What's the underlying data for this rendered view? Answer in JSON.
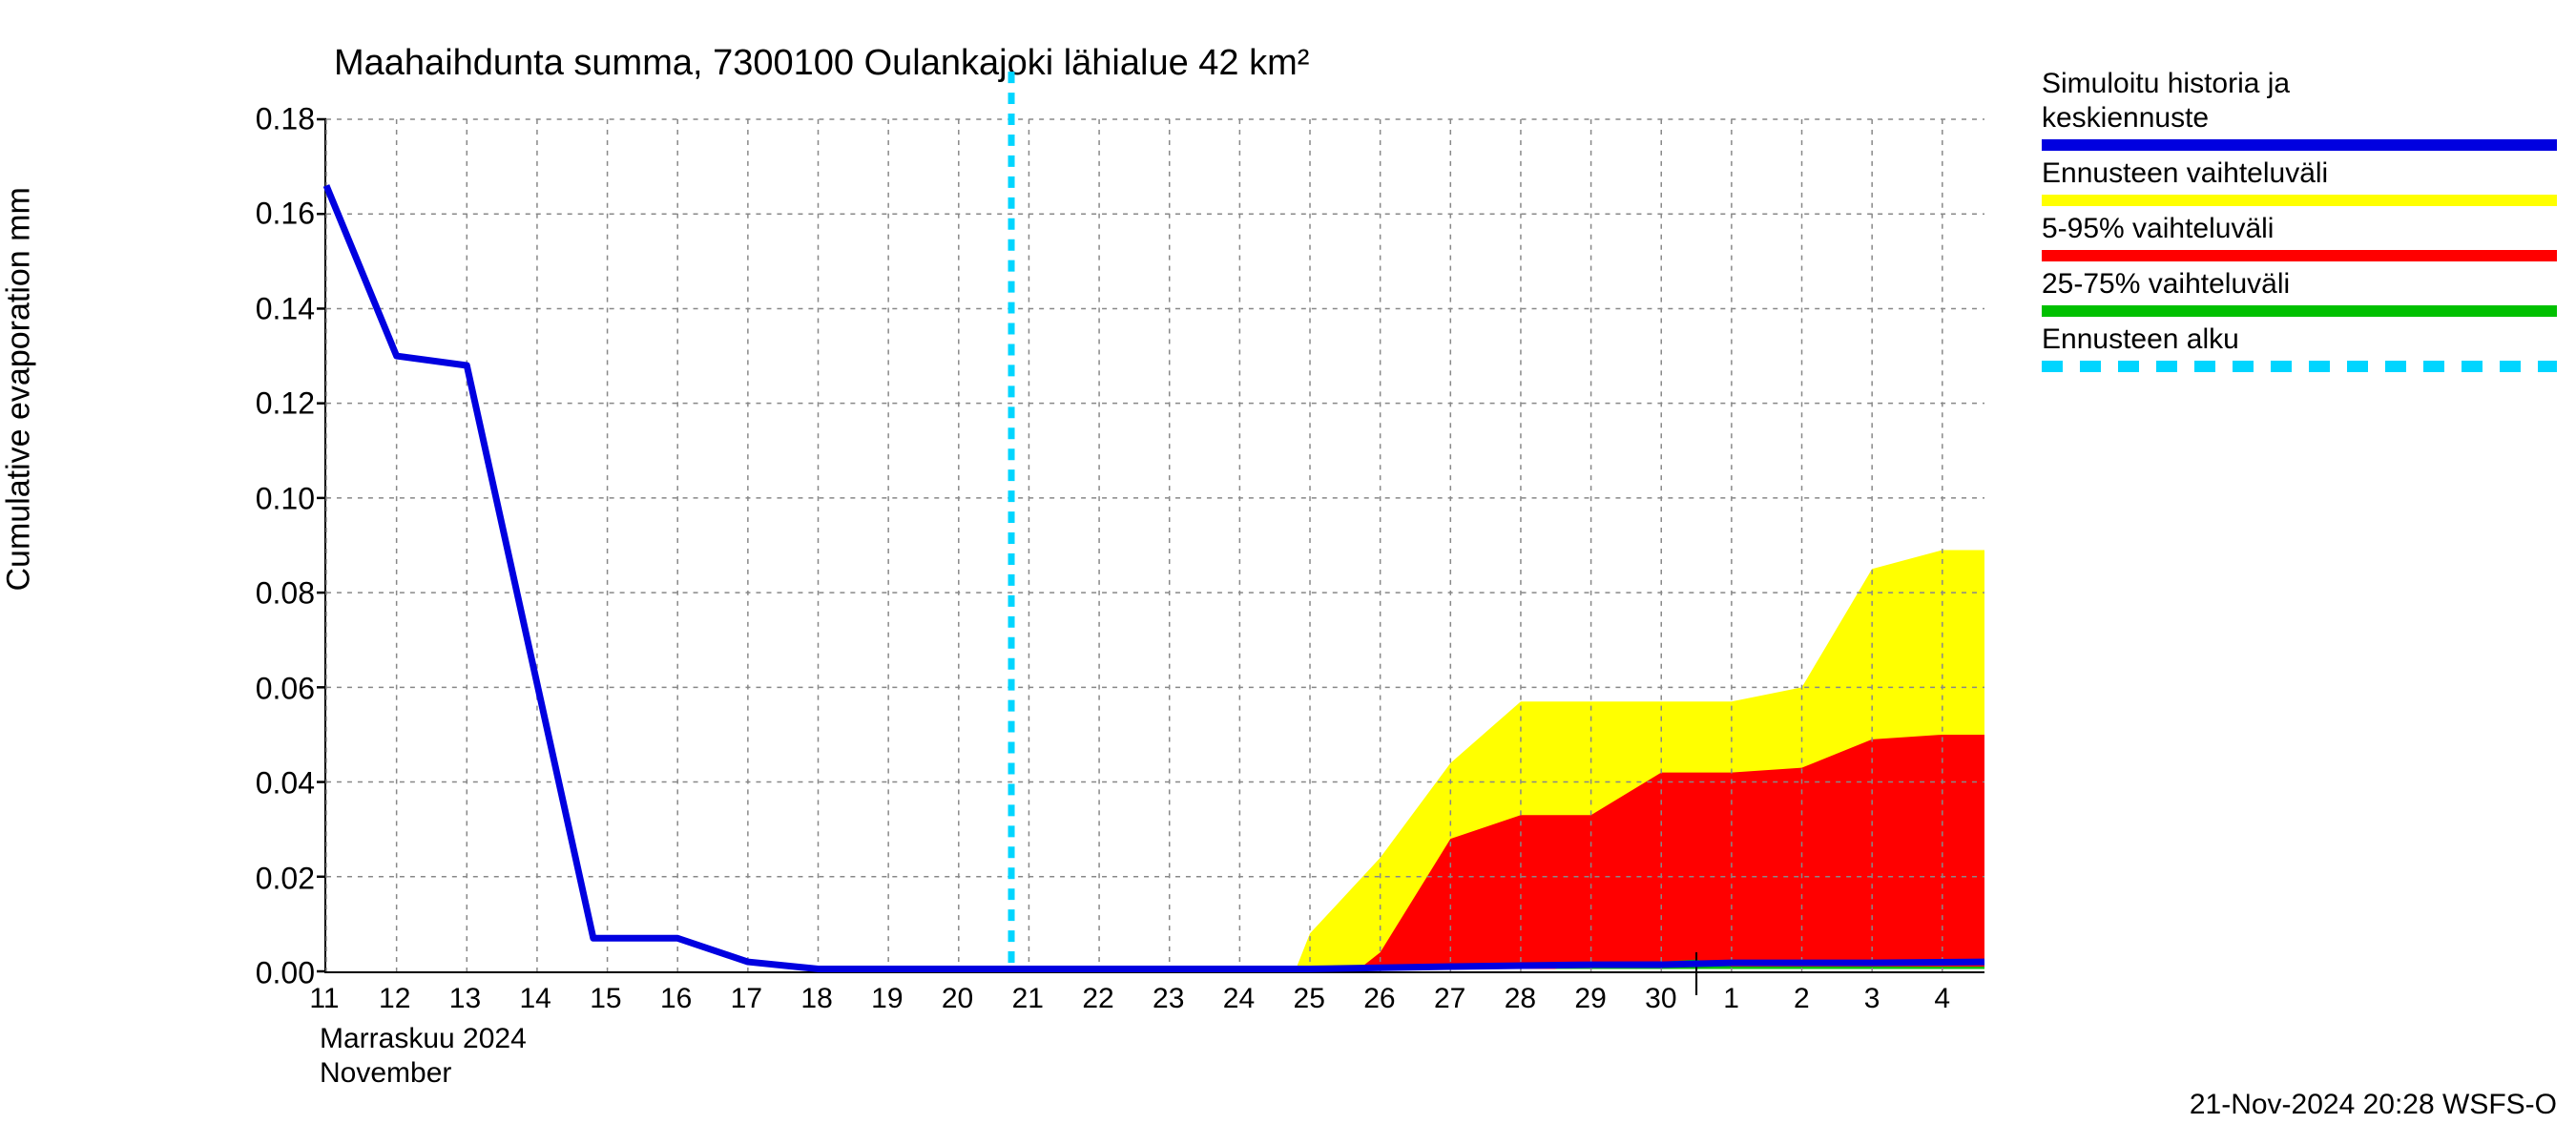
{
  "title": "Maahaihdunta summa, 7300100 Oulankajoki lähialue 42 km²",
  "ylabel": "Cumulative evaporation   mm",
  "xaxis_sublabel1": "Marraskuu 2024",
  "xaxis_sublabel2": "November",
  "footer": "21-Nov-2024 20:28 WSFS-O",
  "chart": {
    "type": "line_with_bands",
    "background_color": "#ffffff",
    "grid_color": "#888888",
    "grid_dash": "4,4",
    "axis_color": "#000000",
    "ylim": [
      0,
      0.18
    ],
    "yticks": [
      0.0,
      0.02,
      0.04,
      0.06,
      0.08,
      0.1,
      0.12,
      0.14,
      0.16,
      0.18
    ],
    "ytick_labels": [
      "0.00",
      "0.02",
      "0.04",
      "0.06",
      "0.08",
      "0.10",
      "0.12",
      "0.14",
      "0.16",
      "0.18"
    ],
    "xdomain": [
      11,
      34.6
    ],
    "xticks_major": [
      11,
      12,
      13,
      14,
      15,
      16,
      17,
      18,
      19,
      20,
      21,
      22,
      23,
      24,
      25,
      26,
      27,
      28,
      29,
      30,
      31,
      32,
      33,
      34
    ],
    "xtick_labels": [
      "11",
      "12",
      "13",
      "14",
      "15",
      "16",
      "17",
      "18",
      "19",
      "20",
      "21",
      "22",
      "23",
      "24",
      "25",
      "26",
      "27",
      "28",
      "29",
      "30",
      "1",
      "2",
      "3",
      "4"
    ],
    "month_separator_x": 30.5,
    "forecast_start_x": 20.75,
    "forecast_line_color": "#00d5ff",
    "forecast_dash": "12,10",
    "forecast_line_width": 7,
    "series_line": {
      "color": "#0000e0",
      "width": 7,
      "points": [
        [
          11,
          0.166
        ],
        [
          12,
          0.13
        ],
        [
          13,
          0.128
        ],
        [
          14.8,
          0.007
        ],
        [
          15,
          0.007
        ],
        [
          16,
          0.007
        ],
        [
          17,
          0.002
        ],
        [
          18,
          0.0005
        ],
        [
          20,
          0.0005
        ],
        [
          25,
          0.0005
        ],
        [
          27,
          0.001
        ],
        [
          29,
          0.0014
        ],
        [
          30,
          0.0014
        ],
        [
          31,
          0.0018
        ],
        [
          33,
          0.0018
        ],
        [
          34.6,
          0.002
        ]
      ]
    },
    "band_yellow": {
      "color": "#ffff00",
      "upper": [
        [
          24.8,
          0.0005
        ],
        [
          25,
          0.008
        ],
        [
          26,
          0.024
        ],
        [
          27,
          0.044
        ],
        [
          28,
          0.057
        ],
        [
          29,
          0.057
        ],
        [
          30,
          0.057
        ],
        [
          31,
          0.057
        ],
        [
          32,
          0.06
        ],
        [
          33,
          0.085
        ],
        [
          34,
          0.089
        ],
        [
          34.6,
          0.089
        ]
      ],
      "lower": [
        [
          24.8,
          0.0005
        ],
        [
          34.6,
          0.0005
        ]
      ]
    },
    "band_red": {
      "color": "#ff0000",
      "upper": [
        [
          25.7,
          0.0005
        ],
        [
          26,
          0.004
        ],
        [
          27,
          0.028
        ],
        [
          28,
          0.033
        ],
        [
          29,
          0.033
        ],
        [
          30,
          0.042
        ],
        [
          31,
          0.042
        ],
        [
          32,
          0.043
        ],
        [
          33,
          0.049
        ],
        [
          34,
          0.05
        ],
        [
          34.6,
          0.05
        ]
      ],
      "lower": [
        [
          25.7,
          0.0005
        ],
        [
          34.6,
          0.0005
        ]
      ]
    },
    "band_green": {
      "color": "#00c000",
      "upper": [
        [
          28.5,
          0.0008
        ],
        [
          29,
          0.002
        ],
        [
          30,
          0.002
        ],
        [
          30.5,
          0.0025
        ],
        [
          31,
          0.001
        ],
        [
          34.6,
          0.001
        ]
      ],
      "lower": [
        [
          28.5,
          0.0005
        ],
        [
          34.6,
          0.0005
        ]
      ]
    }
  },
  "legend": {
    "items": [
      {
        "label": "Simuloitu historia ja\nkeskiennuste",
        "color": "#0000e0",
        "style": "solid"
      },
      {
        "label": "Ennusteen vaihteluväli",
        "color": "#ffff00",
        "style": "solid"
      },
      {
        "label": "5-95% vaihteluväli",
        "color": "#ff0000",
        "style": "solid"
      },
      {
        "label": "25-75% vaihteluväli",
        "color": "#00c000",
        "style": "solid"
      },
      {
        "label": "Ennusteen alku",
        "color": "#00d5ff",
        "style": "dashed"
      }
    ]
  }
}
